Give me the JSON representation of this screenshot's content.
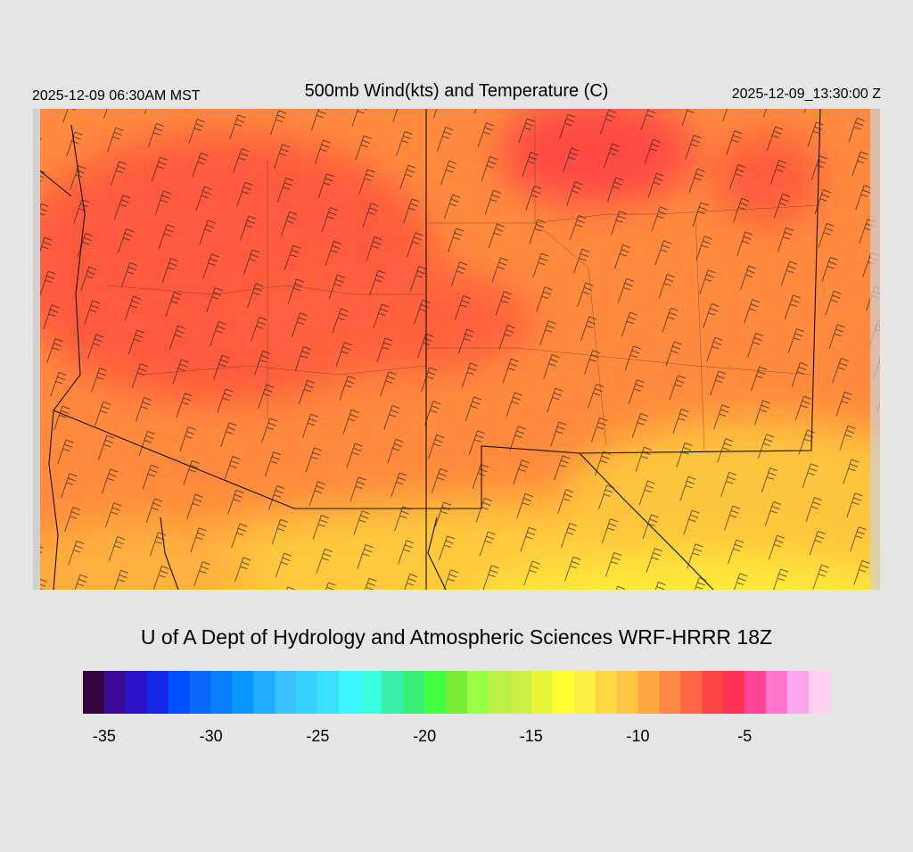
{
  "header": {
    "left": "2025-12-09 06:30AM MST",
    "title": "500mb Wind(kts) and Temperature (C)",
    "right": "2025-12-09_13:30:00 Z"
  },
  "footer": {
    "credit": "U of A Dept of Hydrology and Atmospheric Sciences WRF-HRRR 18Z"
  },
  "colorbar": {
    "range": [
      -36,
      -1
    ],
    "ticks": [
      -35,
      -30,
      -25,
      -20,
      -15,
      -10,
      -5
    ],
    "colors": [
      "#35053f",
      "#3a0a99",
      "#2d14cc",
      "#1428e6",
      "#0050ff",
      "#0a68ff",
      "#0a80ff",
      "#0a98ff",
      "#20adff",
      "#38c2ff",
      "#38d2ff",
      "#38e2ff",
      "#3cf6ff",
      "#38ffdd",
      "#38eeaa",
      "#38ee77",
      "#44ff44",
      "#77ee33",
      "#99ff44",
      "#bbf044",
      "#ccee44",
      "#e6f533",
      "#ffff33",
      "#ffee44",
      "#ffd844",
      "#ffc444",
      "#ffa844",
      "#ff8844",
      "#ff6644",
      "#ff4444",
      "#ff3355",
      "#ff4499",
      "#ff77cc",
      "#ffa4ee",
      "#ffd0f0"
    ]
  }
}
